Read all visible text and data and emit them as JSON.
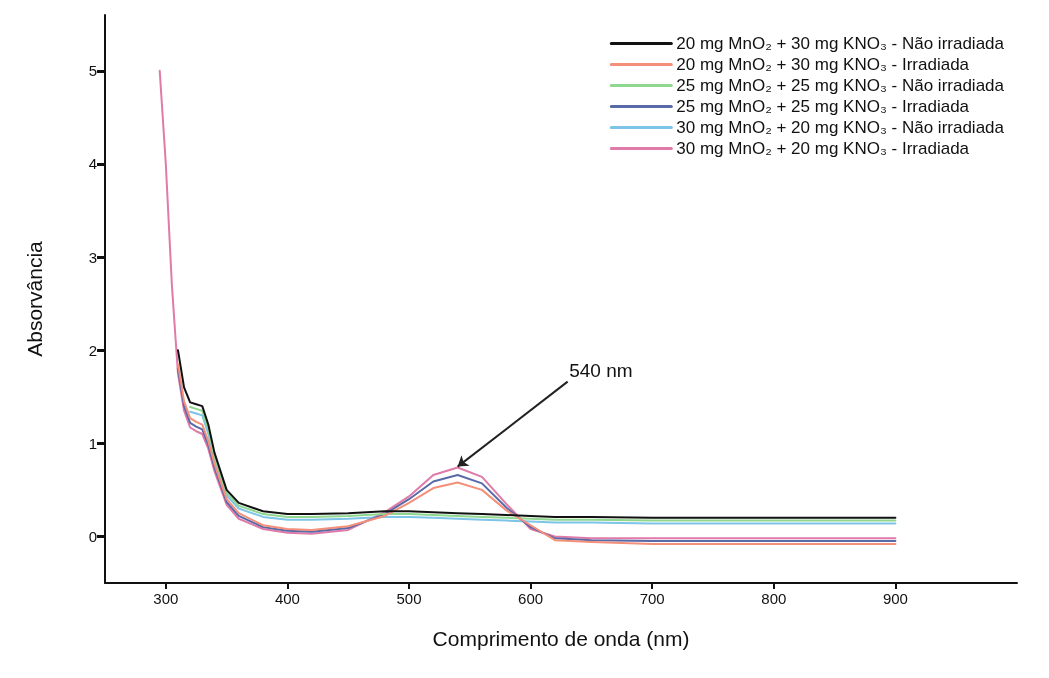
{
  "chart_data": {
    "type": "line",
    "xlabel": "Comprimento de onda (nm)",
    "ylabel": "Absorvância",
    "xlim": [
      250,
      1000
    ],
    "xticks": [
      300,
      400,
      500,
      600,
      700,
      800,
      900
    ],
    "ylim": [
      -0.5,
      5.6
    ],
    "yticks": [
      0,
      1,
      2,
      3,
      4,
      5
    ],
    "grid": false,
    "legend": "top right",
    "marker": "none",
    "line_style": "solid",
    "annotations": [
      {
        "text": "540 nm",
        "x": 540,
        "y": 0.75
      }
    ],
    "x": [
      295,
      300,
      305,
      310,
      315,
      320,
      325,
      330,
      335,
      340,
      350,
      360,
      380,
      400,
      420,
      450,
      480,
      500,
      520,
      540,
      560,
      580,
      600,
      620,
      650,
      700,
      800,
      900
    ],
    "series": [
      {
        "name": "20 mg MnO₂ + 30 mg KNO₃ - Não irradiada",
        "color": "#111111",
        "values": [
          null,
          null,
          null,
          2.0,
          1.6,
          1.44,
          1.42,
          1.4,
          1.2,
          0.9,
          0.5,
          0.36,
          0.27,
          0.24,
          0.24,
          0.25,
          0.27,
          0.27,
          0.26,
          0.25,
          0.24,
          0.23,
          0.22,
          0.21,
          0.21,
          0.2,
          0.2,
          0.2
        ]
      },
      {
        "name": "20 mg MnO₂ + 30 mg KNO₃ - Irradiada",
        "color": "#f4907a",
        "values": [
          null,
          null,
          null,
          1.85,
          1.45,
          1.27,
          1.23,
          1.2,
          1.02,
          0.78,
          0.4,
          0.25,
          0.12,
          0.08,
          0.07,
          0.11,
          0.22,
          0.36,
          0.52,
          0.58,
          0.5,
          0.28,
          0.12,
          -0.04,
          -0.06,
          -0.08,
          -0.08,
          -0.08
        ]
      },
      {
        "name": "25 mg MnO₂ + 25 mg KNO₃ - Não irradiada",
        "color": "#8fd68f",
        "values": [
          null,
          null,
          null,
          null,
          null,
          1.39,
          1.37,
          1.35,
          1.15,
          0.86,
          0.47,
          0.33,
          0.24,
          0.21,
          0.21,
          0.22,
          0.24,
          0.24,
          0.23,
          0.22,
          0.21,
          0.2,
          0.19,
          0.18,
          0.18,
          0.17,
          0.17,
          0.17
        ]
      },
      {
        "name": "25 mg MnO₂ + 25 mg KNO₃ - Irradiada",
        "color": "#5a6aa8",
        "values": [
          null,
          null,
          null,
          1.8,
          1.4,
          1.22,
          1.18,
          1.15,
          0.98,
          0.74,
          0.37,
          0.22,
          0.1,
          0.06,
          0.05,
          0.09,
          0.24,
          0.4,
          0.59,
          0.66,
          0.57,
          0.31,
          0.1,
          -0.02,
          -0.04,
          -0.05,
          -0.05,
          -0.05
        ]
      },
      {
        "name": "30 mg MnO₂ + 20 mg KNO₃ - Não irradiada",
        "color": "#7ec3e8",
        "values": [
          null,
          null,
          null,
          null,
          null,
          1.34,
          1.32,
          1.3,
          1.1,
          0.82,
          0.44,
          0.3,
          0.21,
          0.18,
          0.18,
          0.19,
          0.21,
          0.21,
          0.2,
          0.19,
          0.18,
          0.17,
          0.16,
          0.15,
          0.15,
          0.14,
          0.14,
          0.14
        ]
      },
      {
        "name": "30 mg MnO₂ + 20 mg KNO₃ - Irradiada",
        "color": "#e07aa8",
        "values": [
          5.0,
          4.0,
          2.7,
          1.75,
          1.35,
          1.17,
          1.13,
          1.1,
          0.94,
          0.7,
          0.34,
          0.19,
          0.08,
          0.04,
          0.03,
          0.07,
          0.26,
          0.43,
          0.66,
          0.74,
          0.64,
          0.35,
          0.08,
          0.0,
          -0.02,
          -0.02,
          -0.02,
          -0.02
        ]
      }
    ]
  }
}
